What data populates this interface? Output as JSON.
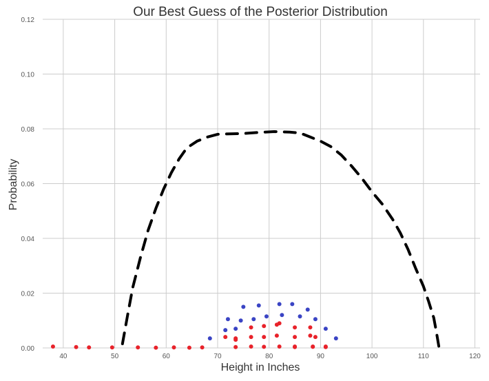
{
  "chart_data": {
    "type": "scatter",
    "title": "Our Best Guess of the Posterior Distribution",
    "xlabel": "Height in Inches",
    "ylabel": "Probability",
    "xlim": [
      36,
      121
    ],
    "ylim": [
      0,
      0.12
    ],
    "xticks": [
      "40",
      "50",
      "60",
      "70",
      "80",
      "90",
      "100",
      "110",
      "120"
    ],
    "yticks": [
      "0.00",
      "0.02",
      "0.04",
      "0.06",
      "0.08",
      "0.10",
      "0.12"
    ],
    "xtick_values": [
      40,
      50,
      60,
      70,
      80,
      90,
      100,
      110,
      120
    ],
    "ytick_values": [
      0,
      0.02,
      0.04,
      0.06,
      0.08,
      0.1,
      0.12
    ],
    "grid": true,
    "colors": {
      "curve": "#000000",
      "red": "#e8222a",
      "blue": "#3a44c4",
      "grid": "#cccccc",
      "background": "#ffffff"
    },
    "series": [
      {
        "style": "dashed-line",
        "color": "curve",
        "x": [
          51.5,
          52.5,
          53.5,
          55,
          56.5,
          58,
          59.5,
          61,
          62.5,
          64,
          66,
          68,
          70,
          72.5,
          75,
          78,
          81,
          84,
          86,
          88,
          90,
          92,
          94,
          96,
          98,
          100,
          102,
          104,
          105.5,
          107,
          108.5,
          110,
          111,
          112,
          112.5,
          113
        ],
        "y": [
          0.0015,
          0.012,
          0.022,
          0.033,
          0.043,
          0.051,
          0.058,
          0.064,
          0.069,
          0.073,
          0.0755,
          0.077,
          0.078,
          0.0782,
          0.0783,
          0.0787,
          0.079,
          0.0788,
          0.0785,
          0.077,
          0.0755,
          0.0735,
          0.0705,
          0.0665,
          0.062,
          0.057,
          0.0525,
          0.047,
          0.042,
          0.036,
          0.029,
          0.0225,
          0.017,
          0.011,
          0.006,
          0.0005
        ]
      },
      {
        "style": "points",
        "color": "red",
        "x": [
          38,
          42.5,
          45,
          49.5,
          54.5,
          58,
          61.5,
          64.5,
          67,
          71.5,
          73.5,
          73.5,
          73.5,
          76.5,
          76.5,
          76.5,
          79,
          79,
          79,
          81.5,
          81.5,
          82,
          82,
          85,
          85,
          85,
          85,
          88,
          88,
          88.5,
          88.5,
          89,
          91,
          91
        ],
        "y": [
          0.0005,
          0.0003,
          0.0002,
          0.0002,
          0.0002,
          0.0001,
          0.0002,
          0.0001,
          0.0002,
          0.004,
          0.003,
          0.0035,
          0.0003,
          0.004,
          0.0075,
          0.0005,
          0.004,
          0.008,
          0.0004,
          0.0045,
          0.0085,
          0.0005,
          0.009,
          0.004,
          0.0075,
          0.0005,
          0.0003,
          0.0045,
          0.0075,
          0.0005,
          0.0004,
          0.004,
          0.0005,
          0.0003
        ]
      },
      {
        "style": "points",
        "color": "blue",
        "x": [
          68.5,
          71.5,
          72,
          73.5,
          74.5,
          75,
          77,
          78,
          79.5,
          82,
          82.5,
          84.5,
          86,
          87.5,
          89,
          91,
          93
        ],
        "y": [
          0.0035,
          0.0065,
          0.0105,
          0.007,
          0.01,
          0.015,
          0.0105,
          0.0155,
          0.0115,
          0.016,
          0.012,
          0.016,
          0.0115,
          0.014,
          0.0105,
          0.007,
          0.0035
        ]
      }
    ]
  }
}
